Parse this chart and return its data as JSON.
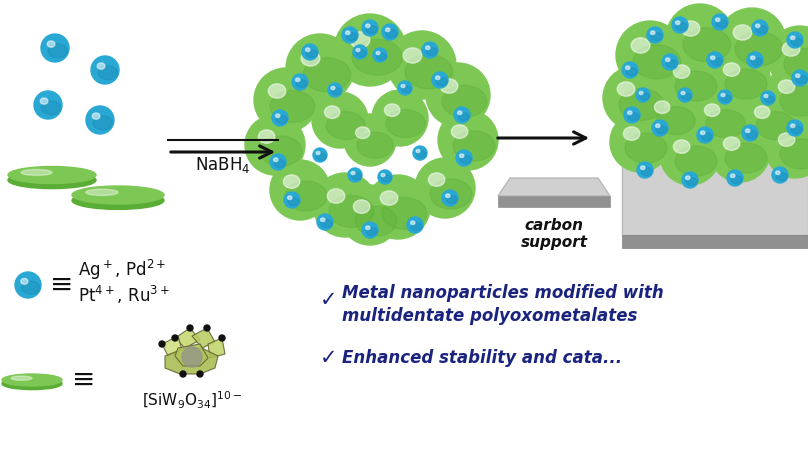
{
  "bg_color": "#ffffff",
  "green_color": "#7dc855",
  "green_dark": "#5aad35",
  "green_light": "#a8e075",
  "blue_color": "#29a8d4",
  "blue_dark": "#1a88b0",
  "blue_light": "#60c8e8",
  "arrow_color": "#111111",
  "text_color": "#111111",
  "dark_blue_text": "#1a237e",
  "gray_support": "#d0d0d0",
  "gray_support_mid": "#b8b8b8",
  "gray_support_dark": "#909090",
  "nabh4_label": "NaBH$_4$",
  "carbon_label": "carbon\nsupport",
  "formula_label": "[SiW$_9$O$_{34}$]$^{10-}$",
  "bullet1a": "Metal nanoparticles modified with",
  "bullet1b": "multidentate polyoxometalates",
  "bullet2": "Enhanced stability and cata..."
}
